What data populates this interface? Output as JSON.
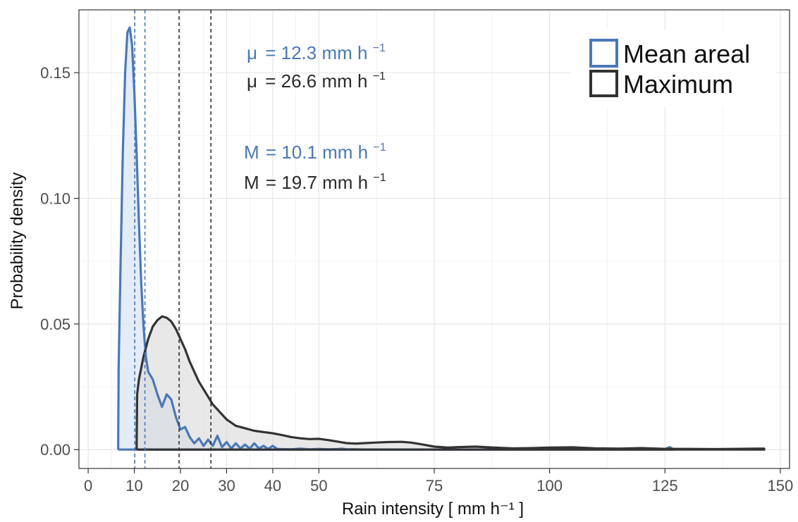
{
  "chart_data": {
    "type": "area",
    "xlabel": "Rain intensity [ mm h⁻¹ ]",
    "ylabel": "Probability density",
    "xlim": [
      -2,
      152
    ],
    "ylim": [
      -0.0075,
      0.175
    ],
    "x_ticks": [
      0,
      10,
      20,
      30,
      40,
      50,
      75,
      100,
      125,
      150
    ],
    "x_tick_labels": [
      "0",
      "10",
      "20",
      "30",
      "40",
      "50",
      "75",
      "100",
      "125",
      "150"
    ],
    "y_ticks": [
      0,
      0.05,
      0.1,
      0.15
    ],
    "y_tick_labels": [
      "0.00",
      "0.05",
      "0.10",
      "0.15"
    ],
    "grid": true,
    "legend": {
      "position": "top-right",
      "entries": [
        {
          "label": "Mean areal",
          "color": "#4a78b5"
        },
        {
          "label": "Maximum",
          "color": "#333333"
        }
      ]
    },
    "series": [
      {
        "name": "Mean areal",
        "color": "#4a78b5",
        "fill": "#dbe6f4",
        "mean": 12.3,
        "median": 10.1,
        "x": [
          6.5,
          6.6,
          7,
          7.5,
          8,
          8.5,
          9,
          9.5,
          10,
          10.5,
          11,
          11.5,
          12,
          12.5,
          13,
          14,
          15,
          16,
          17,
          18,
          19,
          20,
          21,
          22,
          23,
          24,
          25,
          26,
          27,
          28,
          29,
          30,
          31,
          32,
          33,
          34,
          35,
          36,
          37,
          38,
          39,
          40,
          41,
          42,
          44,
          46,
          48,
          50,
          52,
          54,
          55,
          56,
          58,
          60,
          70,
          80,
          90,
          100,
          110,
          120,
          125,
          126,
          127
        ],
        "y": [
          0,
          0.033,
          0.072,
          0.118,
          0.15,
          0.166,
          0.168,
          0.161,
          0.143,
          0.118,
          0.09,
          0.066,
          0.049,
          0.037,
          0.031,
          0.028,
          0.022,
          0.017,
          0.022,
          0.02,
          0.013,
          0.008,
          0.009,
          0.005,
          0.0025,
          0.0045,
          0.0015,
          0.004,
          0.0015,
          0.0055,
          0.001,
          0.003,
          0.0005,
          0.0025,
          0.0005,
          0.002,
          0.0004,
          0.0025,
          0.0005,
          0.0015,
          0.0003,
          0.0015,
          0.0002,
          0.0002,
          0.0001,
          0.0004,
          0.0001,
          0.0003,
          0.0001,
          0.0002,
          0.0004,
          0.0001,
          0.0001,
          5e-05,
          5e-05,
          5e-05,
          5e-05,
          5e-05,
          5e-05,
          5e-05,
          0.0002,
          0.001,
          0
        ]
      },
      {
        "name": "Maximum",
        "color": "#333333",
        "fill": "#d9d9d9",
        "mean": 26.6,
        "median": 19.7,
        "x": [
          10.5,
          10.6,
          11,
          12,
          13,
          14,
          15,
          16,
          17,
          18,
          19,
          20,
          21,
          22,
          23,
          24,
          25,
          26,
          27,
          28,
          29,
          30,
          32,
          34,
          36,
          38,
          40,
          42,
          44,
          46,
          48,
          50,
          52,
          54,
          56,
          58,
          60,
          62,
          65,
          68,
          70,
          72,
          75,
          78,
          80,
          84,
          88,
          92,
          96,
          100,
          105,
          110,
          115,
          120,
          125,
          130,
          135,
          140,
          145,
          146.5
        ],
        "y": [
          0,
          0.022,
          0.028,
          0.037,
          0.044,
          0.049,
          0.0515,
          0.053,
          0.0525,
          0.051,
          0.048,
          0.044,
          0.04,
          0.035,
          0.031,
          0.027,
          0.024,
          0.021,
          0.018,
          0.016,
          0.014,
          0.012,
          0.0095,
          0.0085,
          0.0075,
          0.007,
          0.0065,
          0.0058,
          0.005,
          0.0045,
          0.0042,
          0.0043,
          0.0038,
          0.0032,
          0.0026,
          0.0024,
          0.0026,
          0.0028,
          0.003,
          0.0031,
          0.0028,
          0.0022,
          0.0012,
          0.0008,
          0.001,
          0.0012,
          0.0008,
          0.0005,
          0.0006,
          0.0008,
          0.0009,
          0.0005,
          0.0004,
          0.0006,
          0.0003,
          0.0003,
          0.0002,
          0.0003,
          0.0004,
          0.0004
        ]
      }
    ],
    "annotations": [
      {
        "prefix": "μ",
        "value": "= 12.3 mm h",
        "unit_sup": "−1",
        "color": "#4a78b5"
      },
      {
        "prefix": "μ",
        "value": "= 26.6 mm h",
        "unit_sup": "−1",
        "color": "#2b2b2b"
      },
      {
        "prefix": "M",
        "value": "= 10.1 mm h",
        "unit_sup": "−1",
        "color": "#4a78b5"
      },
      {
        "prefix": "M",
        "value": "= 19.7 mm h",
        "unit_sup": "−1",
        "color": "#2b2b2b"
      }
    ],
    "reference_lines": [
      {
        "x": 10.1,
        "color": "#4a78b5"
      },
      {
        "x": 12.3,
        "color": "#4a78b5"
      },
      {
        "x": 19.7,
        "color": "#333333"
      },
      {
        "x": 26.6,
        "color": "#333333"
      }
    ]
  }
}
